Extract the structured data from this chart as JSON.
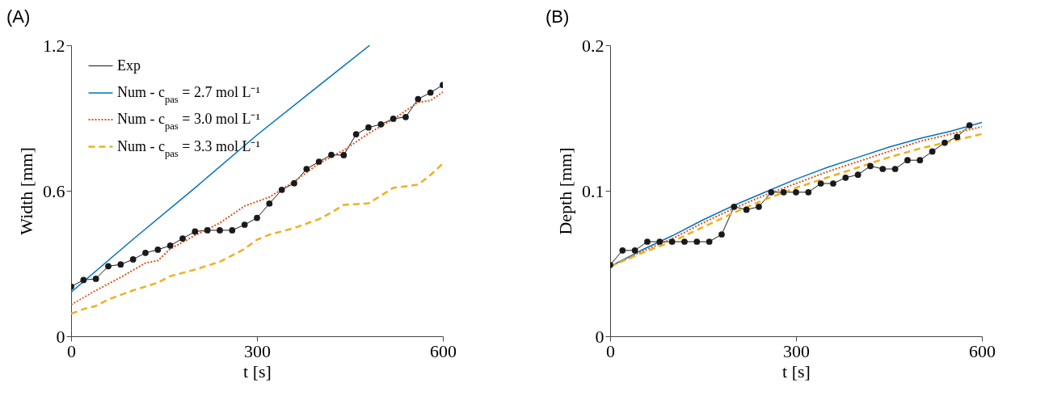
{
  "chart_data": [
    {
      "type": "line",
      "title": "(A)",
      "xlabel": "t [s]",
      "ylabel": "Width [mm]",
      "xlim": [
        0,
        600
      ],
      "xticks": [
        0,
        300,
        600
      ],
      "ylim": [
        0,
        1.2
      ],
      "yticks": [
        0,
        0.6,
        1.2
      ],
      "grid": false,
      "legend": "top left",
      "series": [
        {
          "name": "Exp",
          "color": "#1a1a1a",
          "marker": "circle",
          "line_style": "solid",
          "x": [
            0,
            20,
            40,
            60,
            80,
            100,
            120,
            140,
            160,
            180,
            200,
            220,
            240,
            260,
            280,
            300,
            320,
            340,
            360,
            380,
            400,
            420,
            440,
            460,
            480,
            500,
            520,
            540,
            560,
            580,
            600
          ],
          "values": [
            0.205,
            0.232,
            0.237,
            0.289,
            0.296,
            0.317,
            0.344,
            0.357,
            0.374,
            0.403,
            0.432,
            0.437,
            0.437,
            0.437,
            0.46,
            0.488,
            0.547,
            0.604,
            0.631,
            0.69,
            0.72,
            0.748,
            0.747,
            0.833,
            0.861,
            0.874,
            0.897,
            0.904,
            0.978,
            1.005,
            1.036
          ]
        },
        {
          "name": "Num - c$_{pas}$ = 2.7 mol L⁻¹",
          "color": "#0072bd",
          "marker": "none",
          "line_style": "solid",
          "x": [
            0,
            100,
            200,
            300,
            400,
            482
          ],
          "values": [
            0.182,
            0.4,
            0.612,
            0.83,
            1.034,
            1.2
          ]
        },
        {
          "name": "Num - c$_{pas}$ = 3.0 mol L⁻¹",
          "color": "#d95319",
          "marker": "none",
          "line_style": "dotted",
          "x": [
            0,
            40,
            80,
            120,
            140,
            160,
            200,
            240,
            280,
            320,
            360,
            400,
            440,
            480,
            520,
            560,
            580,
            600
          ],
          "values": [
            0.13,
            0.189,
            0.243,
            0.302,
            0.312,
            0.36,
            0.416,
            0.467,
            0.537,
            0.574,
            0.638,
            0.713,
            0.767,
            0.836,
            0.895,
            0.965,
            0.972,
            1.007
          ]
        },
        {
          "name": "Num - c$_{pas}$ = 3.3 mol L⁻¹",
          "color": "#edb120",
          "marker": "none",
          "line_style": "dashed",
          "x": [
            0,
            20,
            40,
            60,
            100,
            140,
            160,
            200,
            240,
            280,
            300,
            320,
            360,
            400,
            420,
            440,
            480,
            500,
            520,
            560,
            580,
            600
          ],
          "values": [
            0.093,
            0.112,
            0.125,
            0.152,
            0.189,
            0.221,
            0.248,
            0.275,
            0.307,
            0.36,
            0.398,
            0.419,
            0.446,
            0.483,
            0.51,
            0.542,
            0.548,
            0.58,
            0.612,
            0.625,
            0.665,
            0.713
          ]
        }
      ]
    },
    {
      "type": "line",
      "title": "(B)",
      "xlabel": "t [s]",
      "ylabel": "Depth [mm]",
      "xlim": [
        0,
        600
      ],
      "xticks": [
        0,
        300,
        600
      ],
      "ylim": [
        0,
        0.2
      ],
      "yticks": [
        0,
        0.1,
        0.2
      ],
      "grid": false,
      "legend": "top left",
      "series": [
        {
          "name": "Exp",
          "color": "#1a1a1a",
          "marker": "circle",
          "line_style": "solid",
          "x": [
            0,
            20,
            40,
            60,
            80,
            100,
            120,
            140,
            160,
            180,
            200,
            220,
            240,
            260,
            280,
            300,
            320,
            340,
            360,
            380,
            400,
            420,
            440,
            460,
            480,
            500,
            520,
            540,
            560,
            580
          ],
          "values": [
            0.049,
            0.059,
            0.059,
            0.065,
            0.065,
            0.065,
            0.065,
            0.065,
            0.065,
            0.07,
            0.089,
            0.087,
            0.089,
            0.099,
            0.099,
            0.099,
            0.099,
            0.105,
            0.105,
            0.109,
            0.111,
            0.117,
            0.115,
            0.115,
            0.121,
            0.121,
            0.127,
            0.133,
            0.137,
            0.145
          ]
        },
        {
          "name": "Num - c$_{pas}$ = 2.7 mol L⁻¹",
          "color": "#0072bd",
          "marker": "none",
          "line_style": "solid",
          "x": [
            0,
            50,
            100,
            150,
            200,
            250,
            300,
            350,
            400,
            450,
            500,
            550,
            600
          ],
          "values": [
            0.048,
            0.059,
            0.069,
            0.08,
            0.09,
            0.099,
            0.108,
            0.116,
            0.123,
            0.13,
            0.136,
            0.141,
            0.147
          ]
        },
        {
          "name": "Num - c$_{pas}$ = 3.0 mol L⁻¹",
          "color": "#d95319",
          "marker": "none",
          "line_style": "dotted",
          "x": [
            0,
            50,
            100,
            150,
            200,
            250,
            300,
            350,
            400,
            450,
            500,
            550,
            600
          ],
          "values": [
            0.048,
            0.058,
            0.067,
            0.078,
            0.088,
            0.097,
            0.105,
            0.113,
            0.12,
            0.127,
            0.134,
            0.139,
            0.144
          ]
        },
        {
          "name": "Num - c$_{pas}$ = 3.3 mol L⁻¹",
          "color": "#edb120",
          "marker": "none",
          "line_style": "dashed",
          "x": [
            0,
            50,
            100,
            150,
            200,
            250,
            300,
            350,
            400,
            450,
            500,
            550,
            600
          ],
          "values": [
            0.048,
            0.057,
            0.065,
            0.075,
            0.085,
            0.094,
            0.102,
            0.109,
            0.116,
            0.123,
            0.129,
            0.134,
            0.139
          ]
        }
      ]
    }
  ]
}
